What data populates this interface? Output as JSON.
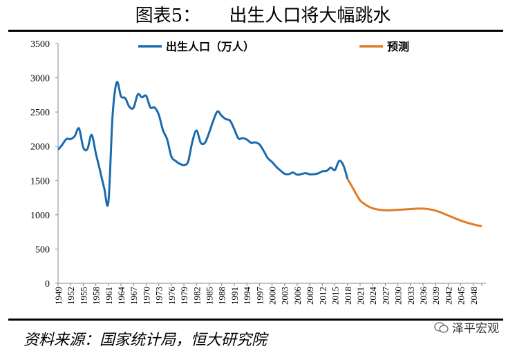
{
  "title": "图表5：     出生人口将大幅跳水",
  "source": "资料来源：国家统计局，恒大研究院",
  "watermark": "泽平宏观",
  "colors": {
    "actual": "#1a6aad",
    "forecast": "#e07b24"
  },
  "chart_data": {
    "type": "line",
    "title": "出生人口将大幅跳水",
    "ylabel": "",
    "xlabel": "",
    "ylim": [
      0,
      3500
    ],
    "xlim": [
      1949,
      2050
    ],
    "yticks": [
      0,
      500,
      1000,
      1500,
      2000,
      2500,
      3000,
      3500
    ],
    "xticks": [
      1949,
      1952,
      1955,
      1958,
      1961,
      1964,
      1967,
      1970,
      1973,
      1976,
      1979,
      1982,
      1985,
      1988,
      1991,
      1994,
      1997,
      2000,
      2003,
      2006,
      2009,
      2012,
      2015,
      2018,
      2021,
      2024,
      2027,
      2030,
      2033,
      2036,
      2039,
      2042,
      2045,
      2048
    ],
    "grid": false,
    "legend_position": "top",
    "series": [
      {
        "name": "出生人口（万人）",
        "x": [
          1949,
          1950,
          1951,
          1952,
          1953,
          1954,
          1955,
          1956,
          1957,
          1958,
          1959,
          1960,
          1961,
          1962,
          1963,
          1964,
          1965,
          1966,
          1967,
          1968,
          1969,
          1970,
          1971,
          1972,
          1973,
          1974,
          1975,
          1976,
          1977,
          1978,
          1979,
          1980,
          1981,
          1982,
          1983,
          1984,
          1985,
          1986,
          1987,
          1988,
          1989,
          1990,
          1991,
          1992,
          1993,
          1994,
          1995,
          1996,
          1997,
          1998,
          1999,
          2000,
          2001,
          2002,
          2003,
          2004,
          2005,
          2006,
          2007,
          2008,
          2009,
          2010,
          2011,
          2012,
          2013,
          2014,
          2015,
          2016,
          2017,
          2018
        ],
        "values": [
          1950,
          2023,
          2107,
          2105,
          2151,
          2260,
          1984,
          1961,
          2167,
          1899,
          1647,
          1389,
          1187,
          2451,
          2934,
          2729,
          2704,
          2577,
          2563,
          2757,
          2715,
          2736,
          2567,
          2566,
          2463,
          2235,
          2102,
          1853,
          1786,
          1745,
          1727,
          1776,
          2064,
          2230,
          2052,
          2050,
          2196,
          2374,
          2508,
          2445,
          2396,
          2374,
          2250,
          2113,
          2120,
          2098,
          2052,
          2057,
          2028,
          1934,
          1827,
          1771,
          1702,
          1647,
          1599,
          1593,
          1617,
          1585,
          1594,
          1608,
          1591,
          1592,
          1604,
          1635,
          1640,
          1687,
          1655,
          1786,
          1723,
          1523
        ]
      },
      {
        "name": "预测",
        "x": [
          2018,
          2019,
          2020,
          2021,
          2022,
          2023,
          2024,
          2025,
          2026,
          2027,
          2028,
          2029,
          2030,
          2031,
          2032,
          2033,
          2034,
          2035,
          2036,
          2037,
          2038,
          2039,
          2040,
          2041,
          2042,
          2043,
          2044,
          2045,
          2046,
          2047,
          2048,
          2049,
          2050
        ],
        "values": [
          1523,
          1420,
          1310,
          1210,
          1160,
          1120,
          1095,
          1080,
          1070,
          1065,
          1065,
          1068,
          1072,
          1076,
          1080,
          1084,
          1088,
          1090,
          1090,
          1085,
          1075,
          1060,
          1040,
          1015,
          990,
          965,
          940,
          915,
          895,
          875,
          860,
          845,
          835
        ]
      }
    ]
  }
}
